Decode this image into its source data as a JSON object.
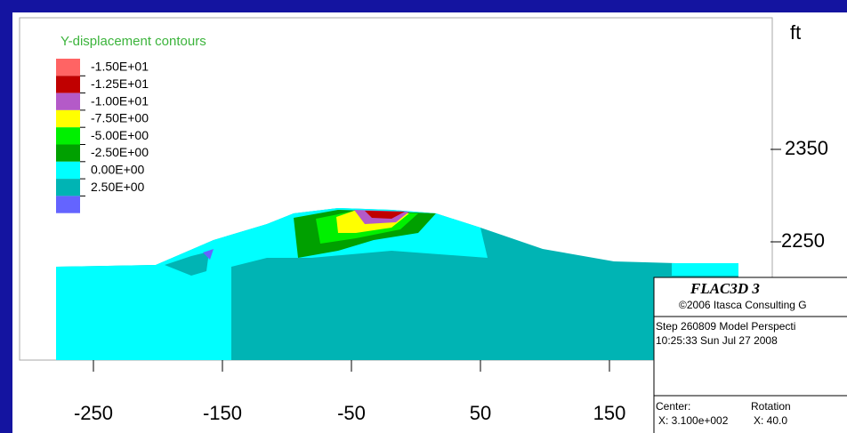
{
  "legend": {
    "title": "Y-displacement contours",
    "items": [
      {
        "label": "-1.50E+01",
        "color": "#ff6464"
      },
      {
        "label": "-1.25E+01",
        "color": "#c00000"
      },
      {
        "label": "-1.00E+01",
        "color": "#b45ac8"
      },
      {
        "label": "-7.50E+00",
        "color": "#ffff00"
      },
      {
        "label": "-5.00E+00",
        "color": "#00f000"
      },
      {
        "label": "-2.50E+00",
        "color": "#00a000"
      },
      {
        "label": "0.00E+00",
        "color": "#00ffff"
      },
      {
        "label": "2.50E+00",
        "color": "#00b4b4"
      },
      {
        "label": null,
        "color": "#6464ff"
      }
    ]
  },
  "axes": {
    "y_unit": "ft",
    "y_labels": [
      "2350",
      "2250"
    ],
    "x_labels": [
      "-250",
      "-150",
      "-50",
      "50",
      "150"
    ]
  },
  "info": {
    "product": "FLAC3D 3",
    "copyright": "©2006 Itasca Consulting G",
    "step": "Step 260809  Model Perspecti",
    "time": "10:25:33 Sun Jul 27 2008",
    "center_label": "Center:",
    "center_x": "X: 3.100e+002",
    "rotation_label": "Rotation",
    "rotation_x": "X:  40.0"
  }
}
